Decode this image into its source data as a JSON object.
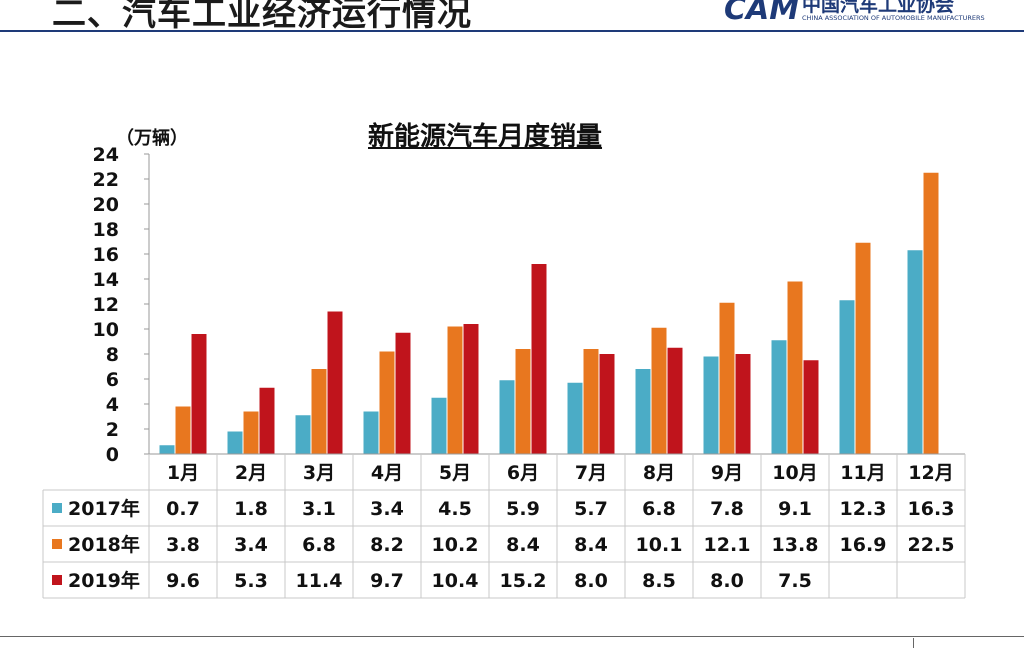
{
  "slide": {
    "title": "二、汽车工业经济运行情况",
    "logo_mark": "CAM",
    "logo_cn": "中国汽车工业协会",
    "logo_en": "CHINA ASSOCIATION OF AUTOMOBILE MANUFACTURERS",
    "footer_text": "..."
  },
  "colors": {
    "header_line": "#1e3a78",
    "s2017": "#4bacc6",
    "s2018": "#e8771f",
    "s2019": "#c0141c"
  },
  "chart_data": {
    "type": "bar",
    "title": "新能源汽车月度销量",
    "ylabel": "（万辆）",
    "ylim": [
      0,
      24
    ],
    "yticks": [
      0,
      2,
      4,
      6,
      8,
      10,
      12,
      14,
      16,
      18,
      20,
      22,
      24
    ],
    "grid": false,
    "legend": "data-table",
    "categories": [
      "1月",
      "2月",
      "3月",
      "4月",
      "5月",
      "6月",
      "7月",
      "8月",
      "9月",
      "10月",
      "11月",
      "12月"
    ],
    "series": [
      {
        "name": "2017年",
        "color": "#4bacc6",
        "values": [
          0.7,
          1.8,
          3.1,
          3.4,
          4.5,
          5.9,
          5.7,
          6.8,
          7.8,
          9.1,
          12.3,
          16.3
        ],
        "labels": [
          "0.7",
          "1.8",
          "3.1",
          "3.4",
          "4.5",
          "5.9",
          "5.7",
          "6.8",
          "7.8",
          "9.1",
          "12.3",
          "16.3"
        ]
      },
      {
        "name": "2018年",
        "color": "#e8771f",
        "values": [
          3.8,
          3.4,
          6.8,
          8.2,
          10.2,
          8.4,
          8.4,
          10.1,
          12.1,
          13.8,
          16.9,
          22.5
        ],
        "labels": [
          "3.8",
          "3.4",
          "6.8",
          "8.2",
          "10.2",
          "8.4",
          "8.4",
          "10.1",
          "12.1",
          "13.8",
          "16.9",
          "22.5"
        ]
      },
      {
        "name": "2019年",
        "color": "#c0141c",
        "values": [
          9.6,
          5.3,
          11.4,
          9.7,
          10.4,
          15.2,
          8.0,
          8.5,
          8.0,
          7.5,
          null,
          null
        ],
        "labels": [
          "9.6",
          "5.3",
          "11.4",
          "9.7",
          "10.4",
          "15.2",
          "8.0",
          "8.5",
          "8.0",
          "7.5",
          "",
          ""
        ]
      }
    ]
  }
}
